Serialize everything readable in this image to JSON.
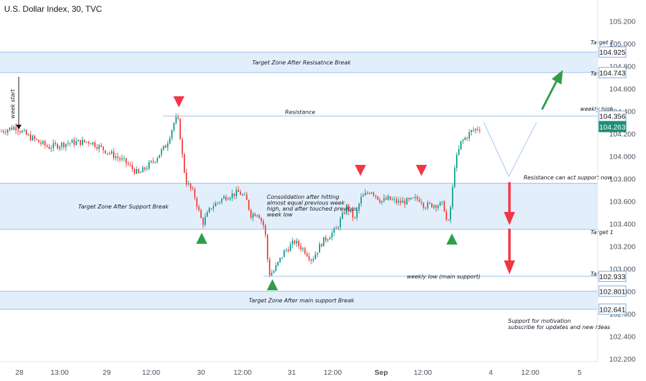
{
  "header": {
    "title": "U.S. Dollar Index, 30, TVC"
  },
  "chart_data": {
    "type": "candlestick",
    "ylim": [
      102.2,
      105.3
    ],
    "y_ticks": [
      "105.200",
      "105.000",
      "104.800",
      "104.600",
      "104.400",
      "104.200",
      "104.000",
      "103.800",
      "103.600",
      "103.400",
      "103.200",
      "103.000",
      "102.800",
      "102.600",
      "102.400",
      "102.200"
    ],
    "x_ticks": [
      "28",
      "13:00",
      "29",
      "12:00",
      "30",
      "12:00",
      "31",
      "12:00",
      "Sep",
      "12:00",
      "4",
      "12:00",
      "5"
    ],
    "price_labels": [
      {
        "value": "104.925",
        "kind": "outline"
      },
      {
        "value": "104.743",
        "kind": "outline"
      },
      {
        "value": "104.356",
        "kind": "outline"
      },
      {
        "value": "104.263",
        "kind": "filled"
      },
      {
        "value": "102.933",
        "kind": "outline"
      },
      {
        "value": "102.801",
        "kind": "outline"
      },
      {
        "value": "102.641",
        "kind": "outline"
      }
    ],
    "path_points": [
      [
        0,
        104.22
      ],
      [
        22,
        104.26
      ],
      [
        40,
        104.18
      ],
      [
        70,
        104.08
      ],
      [
        100,
        104.12
      ],
      [
        130,
        104.13
      ],
      [
        155,
        104.04
      ],
      [
        180,
        103.95
      ],
      [
        200,
        103.84
      ],
      [
        222,
        103.96
      ],
      [
        240,
        104.1
      ],
      [
        253,
        104.33
      ],
      [
        258,
        104.3
      ],
      [
        262,
        104.05
      ],
      [
        268,
        103.78
      ],
      [
        280,
        103.66
      ],
      [
        292,
        103.4
      ],
      [
        305,
        103.55
      ],
      [
        325,
        103.64
      ],
      [
        345,
        103.68
      ],
      [
        355,
        103.62
      ],
      [
        362,
        103.48
      ],
      [
        372,
        103.5
      ],
      [
        382,
        103.36
      ],
      [
        388,
        102.95
      ],
      [
        395,
        102.98
      ],
      [
        410,
        103.15
      ],
      [
        425,
        103.24
      ],
      [
        440,
        103.16
      ],
      [
        450,
        103.08
      ],
      [
        465,
        103.24
      ],
      [
        485,
        103.35
      ],
      [
        500,
        103.55
      ],
      [
        512,
        103.44
      ],
      [
        520,
        103.62
      ],
      [
        535,
        103.7
      ],
      [
        550,
        103.6
      ],
      [
        560,
        103.62
      ],
      [
        575,
        103.59
      ],
      [
        590,
        103.6
      ],
      [
        600,
        103.62
      ],
      [
        607,
        103.62
      ],
      [
        612,
        103.56
      ],
      [
        625,
        103.57
      ],
      [
        640,
        103.57
      ],
      [
        646,
        103.36
      ],
      [
        652,
        103.64
      ],
      [
        656,
        103.92
      ],
      [
        665,
        104.12
      ],
      [
        680,
        104.22
      ],
      [
        693,
        104.26
      ]
    ],
    "projection": [
      [
        698,
        104.3
      ],
      [
        734,
        103.82
      ],
      [
        774,
        104.3
      ]
    ],
    "zones": [
      {
        "label": "Target Zone After Resisatnce Break",
        "top": 104.925,
        "bottom": 104.743
      },
      {
        "label": "Target Zone After Support Break",
        "top": 103.76,
        "bottom": 103.35
      },
      {
        "label": "Target Zone After main support Break",
        "top": 102.801,
        "bottom": 102.641
      }
    ],
    "levels": [
      {
        "name": "Resistance",
        "value": 104.356
      },
      {
        "name": "weekly low (main support)",
        "value": 102.933
      }
    ],
    "annotations": {
      "week_start": "week start",
      "weekly_high": "weekly high",
      "target1_top": "Target 1",
      "target2_top": "Target 2",
      "target1_bottom": "Target 1",
      "target2_bottom": "Target 2",
      "resistance_support": "Resistance can act support now",
      "consolidation": [
        "Consolidation after hitting",
        "almost equal previous week",
        "high, and after touched previous",
        "week low"
      ],
      "motivation": [
        "Support for motivation",
        "subscribe for updates and new ideas"
      ]
    },
    "colors": {
      "up": "#26a69a",
      "down": "#ef5350",
      "zone_fill": "#e3eefb",
      "zone_line": "#9ec3ea",
      "green_arrow": "#2e9e4a",
      "red_arrow": "#f23645",
      "current_price_bg": "#1f8f74"
    }
  }
}
